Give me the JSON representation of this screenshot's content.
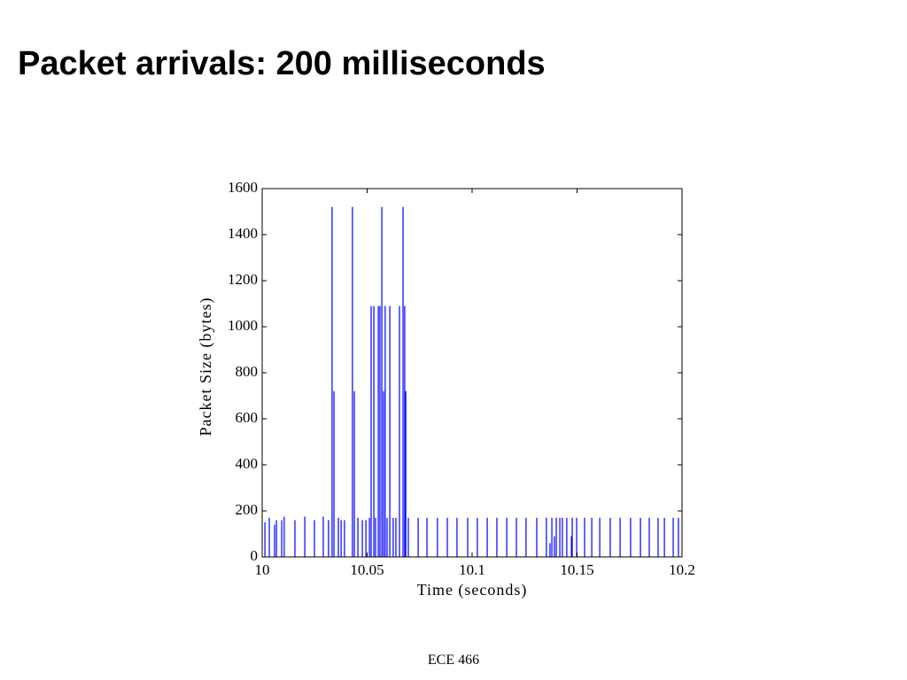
{
  "title": "Packet arrivals: 200 milliseconds",
  "footer": "ECE 466",
  "chart_data": {
    "type": "stem",
    "xlabel": "Time (seconds)",
    "ylabel": "Packet Size (bytes)",
    "xlim": [
      10,
      10.2
    ],
    "xticks": [
      10,
      10.05,
      10.1,
      10.15,
      10.2
    ],
    "ylim": [
      0,
      1600
    ],
    "yticks": [
      0,
      200,
      400,
      600,
      800,
      1000,
      1200,
      1400,
      1600
    ],
    "series": [
      {
        "color": "#0000ff",
        "x": [
          10.0013,
          10.0034,
          10.0059,
          10.0068,
          10.0093,
          10.0105,
          10.0156,
          10.0203,
          10.0249,
          10.0291,
          10.0316,
          10.0333,
          10.0342,
          10.0363,
          10.0376,
          10.0392,
          10.043,
          10.0439,
          10.0456,
          10.0477,
          10.0494,
          10.0511,
          10.0519,
          10.0532,
          10.054,
          10.0553,
          10.0561,
          10.057,
          10.0578,
          10.0586,
          10.0595,
          10.0608,
          10.0624,
          10.0637,
          10.0654,
          10.0671,
          10.0679,
          10.0684,
          10.0696,
          10.0743,
          10.0785,
          10.0835,
          10.0882,
          10.0928,
          10.0979,
          10.1025,
          10.1072,
          10.1118,
          10.1165,
          10.1211,
          10.1257,
          10.1308,
          10.1354,
          10.1371,
          10.138,
          10.1392,
          10.1401,
          10.1418,
          10.143,
          10.1451,
          10.1473,
          10.1477,
          10.1498,
          10.1536,
          10.157,
          10.1608,
          10.1658,
          10.1705,
          10.1755,
          10.1802,
          10.1844,
          10.1886,
          10.1916,
          10.1958,
          10.1983
        ],
        "values": [
          150,
          170,
          140,
          160,
          160,
          175,
          160,
          175,
          160,
          175,
          160,
          1520,
          720,
          170,
          160,
          160,
          1520,
          720,
          170,
          160,
          160,
          170,
          1090,
          1090,
          170,
          1090,
          1090,
          1520,
          720,
          1090,
          170,
          1090,
          170,
          170,
          1090,
          1520,
          1090,
          720,
          170,
          170,
          170,
          170,
          170,
          170,
          170,
          170,
          170,
          170,
          170,
          170,
          170,
          170,
          170,
          60,
          170,
          90,
          170,
          170,
          170,
          170,
          90,
          170,
          170,
          170,
          170,
          170,
          170,
          170,
          170,
          170,
          170,
          170,
          170,
          170,
          170
        ]
      }
    ]
  }
}
